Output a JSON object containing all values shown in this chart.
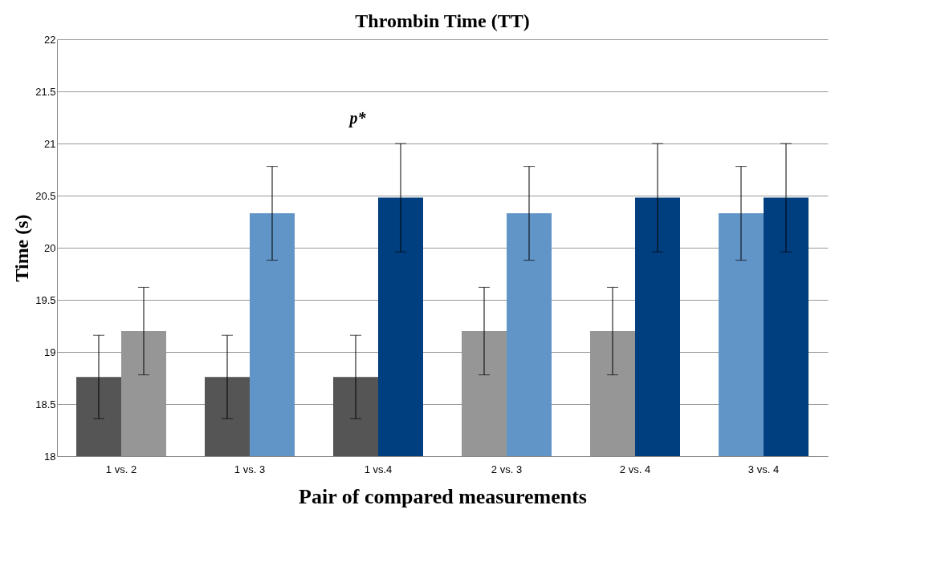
{
  "chart_data": {
    "type": "bar",
    "title": "Thrombin Time (TT)",
    "xlabel": "Pair of compared measurements",
    "ylabel": "Time (s)",
    "categories": [
      "1 vs. 2",
      "1 vs. 3",
      "1 vs.4",
      "2 vs. 3",
      "2 vs. 4",
      "3 vs. 4"
    ],
    "series": [
      {
        "colors": [
          "#555555",
          "#555555",
          "#555555",
          "#969696",
          "#969696",
          "#6194c7"
        ],
        "values": [
          18.76,
          18.76,
          18.76,
          19.2,
          19.2,
          20.33
        ],
        "errors": [
          0.4,
          0.4,
          0.4,
          0.42,
          0.42,
          0.45
        ]
      },
      {
        "colors": [
          "#969696",
          "#6194c7",
          "#003f7f",
          "#6194c7",
          "#003f7f",
          "#003f7f"
        ],
        "values": [
          19.2,
          20.33,
          20.48,
          20.33,
          20.48,
          20.48
        ],
        "errors": [
          0.42,
          0.45,
          0.52,
          0.45,
          0.52,
          0.52
        ]
      }
    ],
    "ylim": [
      18,
      22
    ],
    "yticks": [
      18,
      18.5,
      19,
      19.5,
      20,
      20.5,
      21,
      21.5,
      22
    ],
    "grid": "y",
    "annotations": [
      "p*"
    ]
  }
}
